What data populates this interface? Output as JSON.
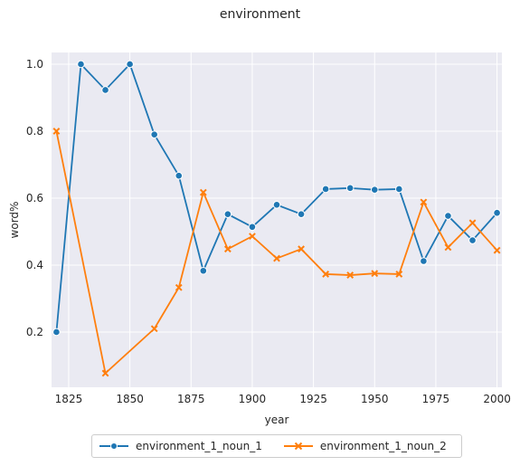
{
  "chart_data": {
    "type": "line",
    "title": "environment",
    "xlabel": "year",
    "ylabel": "word%",
    "xlim": [
      1818,
      2002
    ],
    "ylim": [
      0.035,
      1.035
    ],
    "xticks": [
      1825,
      1850,
      1875,
      1900,
      1925,
      1950,
      1975,
      2000
    ],
    "yticks": [
      0.2,
      0.4,
      0.6,
      0.8,
      1.0
    ],
    "ytick_labels": [
      "0.2",
      "0.4",
      "0.6",
      "0.8",
      "1.0"
    ],
    "grid": true,
    "legend_position": "bottom-center",
    "series": [
      {
        "name": "environment_1_noun_1",
        "color": "#1f77b4",
        "marker": "circle",
        "x": [
          1820,
          1830,
          1840,
          1850,
          1860,
          1870,
          1880,
          1890,
          1900,
          1910,
          1920,
          1930,
          1940,
          1950,
          1960,
          1970,
          1980,
          1990,
          2000
        ],
        "y": [
          0.2,
          1.0,
          0.923,
          1.0,
          0.79,
          0.667,
          0.383,
          0.552,
          0.514,
          0.58,
          0.552,
          0.627,
          0.63,
          0.625,
          0.627,
          0.412,
          0.547,
          0.474,
          0.556
        ]
      },
      {
        "name": "environment_1_noun_2",
        "color": "#ff7f0e",
        "marker": "x",
        "x": [
          1820,
          1840,
          1860,
          1870,
          1880,
          1890,
          1900,
          1910,
          1920,
          1930,
          1940,
          1950,
          1960,
          1970,
          1980,
          1990,
          2000
        ],
        "y": [
          0.8,
          0.077,
          0.21,
          0.333,
          0.617,
          0.448,
          0.486,
          0.42,
          0.448,
          0.373,
          0.37,
          0.375,
          0.373,
          0.588,
          0.453,
          0.526,
          0.444
        ]
      }
    ]
  }
}
